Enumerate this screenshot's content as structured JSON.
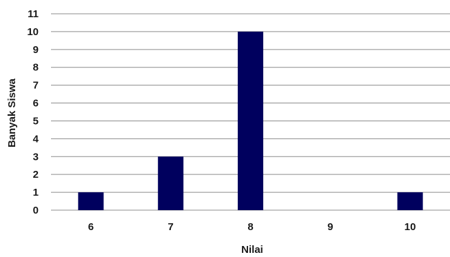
{
  "chart_data": {
    "type": "bar",
    "categories": [
      "6",
      "7",
      "8",
      "9",
      "10"
    ],
    "values": [
      1,
      3,
      10,
      0,
      1
    ],
    "title": "",
    "xlabel": "Nilai",
    "ylabel": "Banyak Siswa",
    "ylim": [
      0,
      11
    ],
    "yticks": [
      0,
      1,
      2,
      3,
      4,
      5,
      6,
      7,
      8,
      9,
      10,
      11
    ],
    "grid": true,
    "legend": "none",
    "bar_color": "#00005e"
  }
}
